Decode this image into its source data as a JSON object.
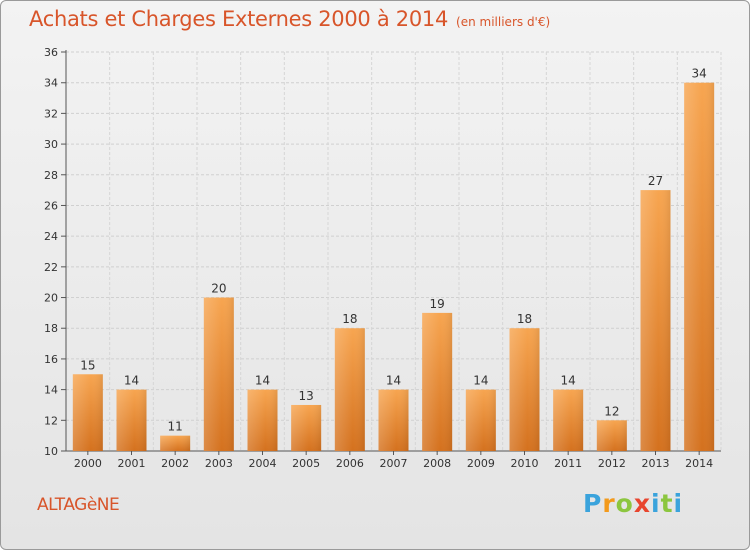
{
  "title": "Achats et Charges Externes 2000 à 2014",
  "subtitle": "(en milliers d'€)",
  "commune": "ALTAGèNE",
  "logo": {
    "letters": [
      "P",
      "r",
      "o",
      "x",
      "i",
      "t",
      "i"
    ]
  },
  "colors": {
    "bar_light": "#f7a550",
    "bar_dark": "#d4711e",
    "title": "#d8552a",
    "grid": "#d0d0d0"
  },
  "chart_data": {
    "type": "bar",
    "categories": [
      "2000",
      "2001",
      "2002",
      "2003",
      "2004",
      "2005",
      "2006",
      "2007",
      "2008",
      "2009",
      "2010",
      "2011",
      "2012",
      "2013",
      "2014"
    ],
    "values": [
      15,
      14,
      11,
      20,
      14,
      13,
      18,
      14,
      19,
      14,
      18,
      14,
      12,
      27,
      34
    ],
    "ylim": [
      10,
      36
    ],
    "yticks": [
      10,
      12,
      14,
      16,
      18,
      20,
      22,
      24,
      26,
      28,
      30,
      32,
      34,
      36
    ],
    "grid": true,
    "xlabel": "",
    "ylabel": ""
  }
}
